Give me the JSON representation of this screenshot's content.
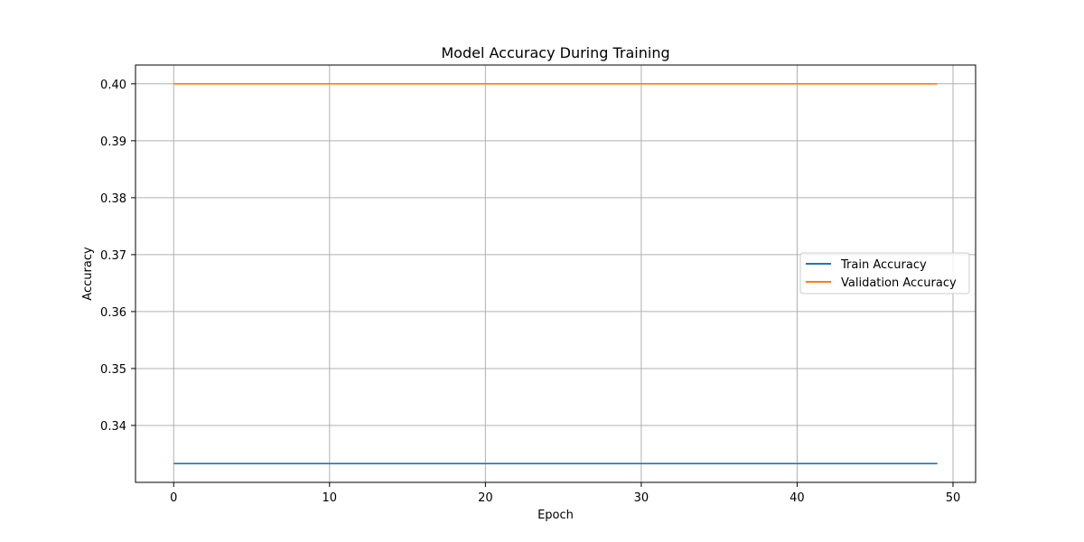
{
  "chart_data": {
    "type": "line",
    "title": "Model Accuracy During Training",
    "xlabel": "Epoch",
    "ylabel": "Accuracy",
    "x": [
      0,
      49
    ],
    "series": [
      {
        "name": "Train Accuracy",
        "color": "#1f77b4",
        "values": [
          0.3333,
          0.3333
        ]
      },
      {
        "name": "Validation Accuracy",
        "color": "#ff7f0e",
        "values": [
          0.4,
          0.4
        ]
      }
    ],
    "xlim": [
      -2.45,
      51.45
    ],
    "ylim": [
      0.33,
      0.4033
    ],
    "xticks": [
      0,
      10,
      20,
      30,
      40,
      50
    ],
    "xtick_labels": [
      "0",
      "10",
      "20",
      "30",
      "40",
      "50"
    ],
    "yticks": [
      0.34,
      0.35,
      0.36,
      0.37,
      0.38,
      0.39,
      0.4
    ],
    "ytick_labels": [
      "0.34",
      "0.35",
      "0.36",
      "0.37",
      "0.38",
      "0.39",
      "0.40"
    ],
    "grid": true,
    "legend_position": "center-right",
    "grid_color": "#b0b0b0",
    "axis_color": "#000000"
  }
}
